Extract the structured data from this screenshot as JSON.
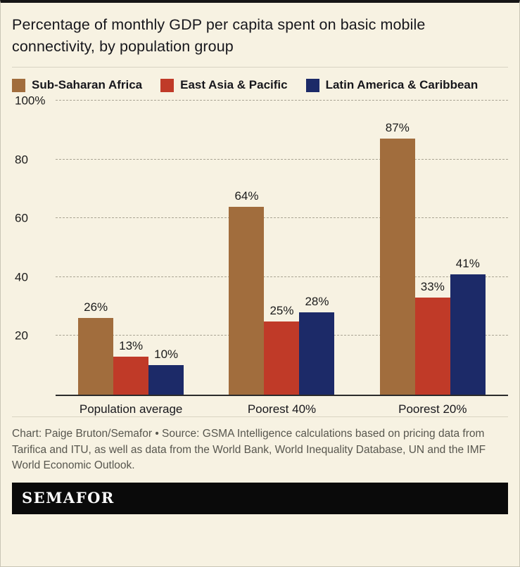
{
  "header": {
    "title": "Percentage of monthly GDP per capita spent on basic mobile connectivity, by population group"
  },
  "legend": [
    {
      "label": "Sub-Saharan Africa",
      "color": "#a16d3d"
    },
    {
      "label": "East Asia & Pacific",
      "color": "#c03a28"
    },
    {
      "label": "Latin America & Caribbean",
      "color": "#1c2a68"
    }
  ],
  "chart_data": {
    "type": "bar",
    "title": "Percentage of monthly GDP per capita spent on basic mobile connectivity, by population group",
    "categories": [
      "Population average",
      "Poorest 40%",
      "Poorest 20%"
    ],
    "series": [
      {
        "name": "Sub-Saharan Africa",
        "color": "#a16d3d",
        "values": [
          26,
          64,
          87
        ]
      },
      {
        "name": "East Asia & Pacific",
        "color": "#c03a28",
        "values": [
          13,
          25,
          33
        ]
      },
      {
        "name": "Latin America & Caribbean",
        "color": "#1c2a68",
        "values": [
          10,
          28,
          41
        ]
      }
    ],
    "value_suffix": "%",
    "xlabel": "",
    "ylabel": "",
    "ylim": [
      0,
      100
    ],
    "yticks": [
      20,
      40,
      60,
      80,
      100
    ],
    "ytick_labels": [
      "20",
      "40",
      "60",
      "80",
      "100%"
    ],
    "grid": "dashed-horizontal",
    "legend_position": "top"
  },
  "footer": {
    "credit": "Chart: Paige Bruton/Semafor • Source: GSMA Intelligence calculations based on pricing data from Tarifica and ITU, as well as data from the World Bank, World Inequality Database, UN and the IMF World Economic Outlook.",
    "logo": "SEMAFOR"
  }
}
